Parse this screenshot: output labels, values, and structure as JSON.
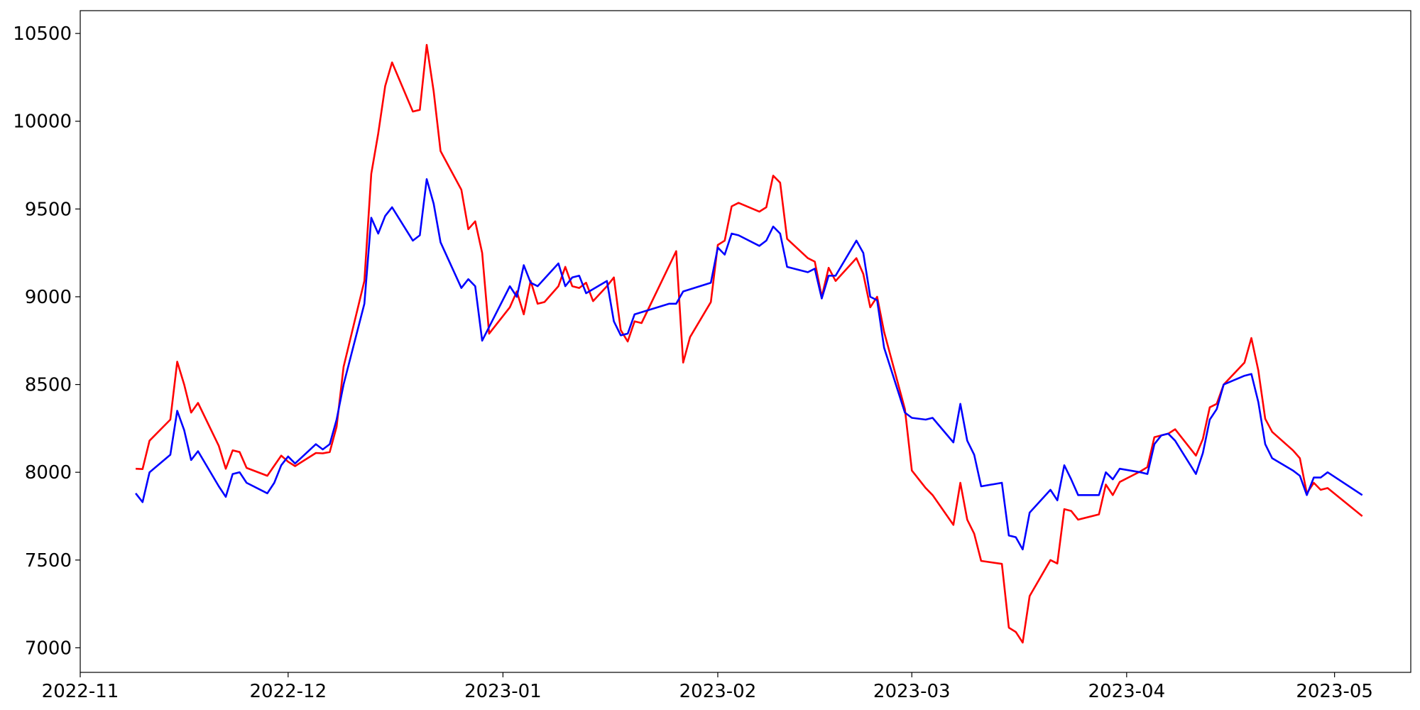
{
  "chart_data": {
    "type": "line",
    "title": "",
    "xlabel": "",
    "ylabel": "",
    "grid": false,
    "xlim": [
      "2022-11-01",
      "2023-05-12"
    ],
    "ylim": [
      6860,
      10630
    ],
    "x_ticks": [
      "2022-11-01",
      "2022-12-01",
      "2023-01-01",
      "2023-02-01",
      "2023-03-01",
      "2023-04-01",
      "2023-05-01"
    ],
    "x_tick_labels": [
      "2022-11",
      "2022-12",
      "2023-01",
      "2023-02",
      "2023-03",
      "2023-04",
      "2023-05"
    ],
    "y_ticks": [
      7000,
      7500,
      8000,
      8500,
      9000,
      9500,
      10000,
      10500
    ],
    "y_tick_labels": [
      "7000",
      "7500",
      "8000",
      "8500",
      "9000",
      "9500",
      "10000",
      "10500"
    ],
    "series": [
      {
        "color": "#ff0000",
        "points": [
          [
            "2022-11-09",
            8020
          ],
          [
            "2022-11-10",
            8018
          ],
          [
            "2022-11-11",
            8180
          ],
          [
            "2022-11-14",
            8300
          ],
          [
            "2022-11-15",
            8630
          ],
          [
            "2022-11-16",
            8500
          ],
          [
            "2022-11-17",
            8340
          ],
          [
            "2022-11-18",
            8395
          ],
          [
            "2022-11-21",
            8150
          ],
          [
            "2022-11-22",
            8020
          ],
          [
            "2022-11-23",
            8125
          ],
          [
            "2022-11-24",
            8115
          ],
          [
            "2022-11-25",
            8025
          ],
          [
            "2022-11-28",
            7980
          ],
          [
            "2022-11-30",
            8095
          ],
          [
            "2022-12-01",
            8060
          ],
          [
            "2022-12-02",
            8035
          ],
          [
            "2022-12-05",
            8110
          ],
          [
            "2022-12-06",
            8108
          ],
          [
            "2022-12-07",
            8115
          ],
          [
            "2022-12-08",
            8260
          ],
          [
            "2022-12-09",
            8600
          ],
          [
            "2022-12-12",
            9090
          ],
          [
            "2022-12-13",
            9700
          ],
          [
            "2022-12-14",
            9930
          ],
          [
            "2022-12-15",
            10200
          ],
          [
            "2022-12-16",
            10335
          ],
          [
            "2022-12-19",
            10055
          ],
          [
            "2022-12-20",
            10065
          ],
          [
            "2022-12-21",
            10435
          ],
          [
            "2022-12-22",
            10170
          ],
          [
            "2022-12-23",
            9830
          ],
          [
            "2022-12-26",
            9610
          ],
          [
            "2022-12-27",
            9385
          ],
          [
            "2022-12-28",
            9430
          ],
          [
            "2022-12-29",
            9250
          ],
          [
            "2022-12-30",
            8790
          ],
          [
            "2023-01-02",
            8940
          ],
          [
            "2023-01-03",
            9030
          ],
          [
            "2023-01-04",
            8900
          ],
          [
            "2023-01-05",
            9090
          ],
          [
            "2023-01-06",
            8960
          ],
          [
            "2023-01-07",
            8970
          ],
          [
            "2023-01-09",
            9060
          ],
          [
            "2023-01-10",
            9170
          ],
          [
            "2023-01-11",
            9060
          ],
          [
            "2023-01-12",
            9050
          ],
          [
            "2023-01-13",
            9080
          ],
          [
            "2023-01-14",
            8975
          ],
          [
            "2023-01-16",
            9060
          ],
          [
            "2023-01-17",
            9110
          ],
          [
            "2023-01-18",
            8810
          ],
          [
            "2023-01-19",
            8745
          ],
          [
            "2023-01-20",
            8860
          ],
          [
            "2023-01-21",
            8850
          ],
          [
            "2023-01-26",
            9260
          ],
          [
            "2023-01-27",
            8625
          ],
          [
            "2023-01-28",
            8770
          ],
          [
            "2023-01-31",
            8970
          ],
          [
            "2023-02-01",
            9295
          ],
          [
            "2023-02-02",
            9320
          ],
          [
            "2023-02-03",
            9515
          ],
          [
            "2023-02-04",
            9535
          ],
          [
            "2023-02-07",
            9485
          ],
          [
            "2023-02-08",
            9510
          ],
          [
            "2023-02-09",
            9690
          ],
          [
            "2023-02-10",
            9650
          ],
          [
            "2023-02-11",
            9330
          ],
          [
            "2023-02-14",
            9220
          ],
          [
            "2023-02-15",
            9200
          ],
          [
            "2023-02-16",
            9000
          ],
          [
            "2023-02-17",
            9165
          ],
          [
            "2023-02-18",
            9090
          ],
          [
            "2023-02-21",
            9220
          ],
          [
            "2023-02-22",
            9130
          ],
          [
            "2023-02-23",
            8940
          ],
          [
            "2023-02-24",
            9000
          ],
          [
            "2023-02-25",
            8800
          ],
          [
            "2023-02-28",
            8360
          ],
          [
            "2023-03-01",
            8010
          ],
          [
            "2023-03-03",
            7910
          ],
          [
            "2023-03-04",
            7870
          ],
          [
            "2023-03-07",
            7700
          ],
          [
            "2023-03-08",
            7940
          ],
          [
            "2023-03-09",
            7730
          ],
          [
            "2023-03-10",
            7650
          ],
          [
            "2023-03-11",
            7495
          ],
          [
            "2023-03-14",
            7478
          ],
          [
            "2023-03-15",
            7115
          ],
          [
            "2023-03-16",
            7090
          ],
          [
            "2023-03-17",
            7030
          ],
          [
            "2023-03-18",
            7295
          ],
          [
            "2023-03-21",
            7500
          ],
          [
            "2023-03-22",
            7480
          ],
          [
            "2023-03-23",
            7790
          ],
          [
            "2023-03-24",
            7780
          ],
          [
            "2023-03-25",
            7730
          ],
          [
            "2023-03-28",
            7760
          ],
          [
            "2023-03-29",
            7930
          ],
          [
            "2023-03-30",
            7870
          ],
          [
            "2023-03-31",
            7945
          ],
          [
            "2023-04-03",
            8005
          ],
          [
            "2023-04-04",
            8030
          ],
          [
            "2023-04-05",
            8200
          ],
          [
            "2023-04-06",
            8210
          ],
          [
            "2023-04-07",
            8220
          ],
          [
            "2023-04-08",
            8245
          ],
          [
            "2023-04-11",
            8095
          ],
          [
            "2023-04-12",
            8190
          ],
          [
            "2023-04-13",
            8370
          ],
          [
            "2023-04-14",
            8390
          ],
          [
            "2023-04-15",
            8500
          ],
          [
            "2023-04-18",
            8625
          ],
          [
            "2023-04-19",
            8765
          ],
          [
            "2023-04-20",
            8580
          ],
          [
            "2023-04-21",
            8305
          ],
          [
            "2023-04-22",
            8230
          ],
          [
            "2023-04-25",
            8125
          ],
          [
            "2023-04-26",
            8080
          ],
          [
            "2023-04-27",
            7880
          ],
          [
            "2023-04-28",
            7940
          ],
          [
            "2023-04-29",
            7900
          ],
          [
            "2023-04-30",
            7910
          ],
          [
            "2023-05-05",
            7750
          ]
        ]
      },
      {
        "color": "#0000ff",
        "points": [
          [
            "2022-11-09",
            7880
          ],
          [
            "2022-11-10",
            7830
          ],
          [
            "2022-11-11",
            8000
          ],
          [
            "2022-11-14",
            8100
          ],
          [
            "2022-11-15",
            8350
          ],
          [
            "2022-11-16",
            8240
          ],
          [
            "2022-11-17",
            8070
          ],
          [
            "2022-11-18",
            8120
          ],
          [
            "2022-11-21",
            7920
          ],
          [
            "2022-11-22",
            7860
          ],
          [
            "2022-11-23",
            7990
          ],
          [
            "2022-11-24",
            8000
          ],
          [
            "2022-11-25",
            7940
          ],
          [
            "2022-11-28",
            7880
          ],
          [
            "2022-11-29",
            7940
          ],
          [
            "2022-11-30",
            8040
          ],
          [
            "2022-12-01",
            8090
          ],
          [
            "2022-12-02",
            8050
          ],
          [
            "2022-12-05",
            8160
          ],
          [
            "2022-12-06",
            8130
          ],
          [
            "2022-12-07",
            8160
          ],
          [
            "2022-12-08",
            8300
          ],
          [
            "2022-12-09",
            8500
          ],
          [
            "2022-12-12",
            8960
          ],
          [
            "2022-12-13",
            9450
          ],
          [
            "2022-12-14",
            9360
          ],
          [
            "2022-12-15",
            9460
          ],
          [
            "2022-12-16",
            9510
          ],
          [
            "2022-12-19",
            9320
          ],
          [
            "2022-12-20",
            9350
          ],
          [
            "2022-12-21",
            9670
          ],
          [
            "2022-12-22",
            9530
          ],
          [
            "2022-12-23",
            9310
          ],
          [
            "2022-12-26",
            9050
          ],
          [
            "2022-12-27",
            9100
          ],
          [
            "2022-12-28",
            9060
          ],
          [
            "2022-12-29",
            8750
          ],
          [
            "2023-01-02",
            9060
          ],
          [
            "2023-01-03",
            9000
          ],
          [
            "2023-01-04",
            9180
          ],
          [
            "2023-01-05",
            9080
          ],
          [
            "2023-01-06",
            9060
          ],
          [
            "2023-01-09",
            9190
          ],
          [
            "2023-01-10",
            9060
          ],
          [
            "2023-01-11",
            9110
          ],
          [
            "2023-01-12",
            9120
          ],
          [
            "2023-01-13",
            9020
          ],
          [
            "2023-01-16",
            9090
          ],
          [
            "2023-01-17",
            8860
          ],
          [
            "2023-01-18",
            8780
          ],
          [
            "2023-01-19",
            8790
          ],
          [
            "2023-01-20",
            8900
          ],
          [
            "2023-01-25",
            8960
          ],
          [
            "2023-01-26",
            8960
          ],
          [
            "2023-01-27",
            9030
          ],
          [
            "2023-01-31",
            9080
          ],
          [
            "2023-02-01",
            9280
          ],
          [
            "2023-02-02",
            9240
          ],
          [
            "2023-02-03",
            9360
          ],
          [
            "2023-02-04",
            9350
          ],
          [
            "2023-02-07",
            9290
          ],
          [
            "2023-02-08",
            9320
          ],
          [
            "2023-02-09",
            9400
          ],
          [
            "2023-02-10",
            9360
          ],
          [
            "2023-02-11",
            9170
          ],
          [
            "2023-02-14",
            9140
          ],
          [
            "2023-02-15",
            9160
          ],
          [
            "2023-02-16",
            8990
          ],
          [
            "2023-02-17",
            9120
          ],
          [
            "2023-02-18",
            9120
          ],
          [
            "2023-02-21",
            9320
          ],
          [
            "2023-02-22",
            9250
          ],
          [
            "2023-02-23",
            9000
          ],
          [
            "2023-02-24",
            8980
          ],
          [
            "2023-02-25",
            8710
          ],
          [
            "2023-02-28",
            8340
          ],
          [
            "2023-03-01",
            8310
          ],
          [
            "2023-03-03",
            8300
          ],
          [
            "2023-03-04",
            8310
          ],
          [
            "2023-03-07",
            8170
          ],
          [
            "2023-03-08",
            8390
          ],
          [
            "2023-03-09",
            8180
          ],
          [
            "2023-03-10",
            8100
          ],
          [
            "2023-03-11",
            7920
          ],
          [
            "2023-03-14",
            7940
          ],
          [
            "2023-03-15",
            7640
          ],
          [
            "2023-03-16",
            7630
          ],
          [
            "2023-03-17",
            7560
          ],
          [
            "2023-03-18",
            7770
          ],
          [
            "2023-03-21",
            7900
          ],
          [
            "2023-03-22",
            7840
          ],
          [
            "2023-03-23",
            8040
          ],
          [
            "2023-03-24",
            7960
          ],
          [
            "2023-03-25",
            7870
          ],
          [
            "2023-03-28",
            7870
          ],
          [
            "2023-03-29",
            8000
          ],
          [
            "2023-03-30",
            7960
          ],
          [
            "2023-03-31",
            8020
          ],
          [
            "2023-04-03",
            8000
          ],
          [
            "2023-04-04",
            7990
          ],
          [
            "2023-04-05",
            8160
          ],
          [
            "2023-04-06",
            8210
          ],
          [
            "2023-04-07",
            8220
          ],
          [
            "2023-04-08",
            8180
          ],
          [
            "2023-04-11",
            7990
          ],
          [
            "2023-04-12",
            8110
          ],
          [
            "2023-04-13",
            8300
          ],
          [
            "2023-04-14",
            8360
          ],
          [
            "2023-04-15",
            8500
          ],
          [
            "2023-04-18",
            8550
          ],
          [
            "2023-04-19",
            8560
          ],
          [
            "2023-04-20",
            8400
          ],
          [
            "2023-04-21",
            8160
          ],
          [
            "2023-04-22",
            8080
          ],
          [
            "2023-04-25",
            8010
          ],
          [
            "2023-04-26",
            7980
          ],
          [
            "2023-04-27",
            7870
          ],
          [
            "2023-04-28",
            7970
          ],
          [
            "2023-04-29",
            7970
          ],
          [
            "2023-04-30",
            8000
          ],
          [
            "2023-05-05",
            7870
          ]
        ]
      }
    ]
  }
}
